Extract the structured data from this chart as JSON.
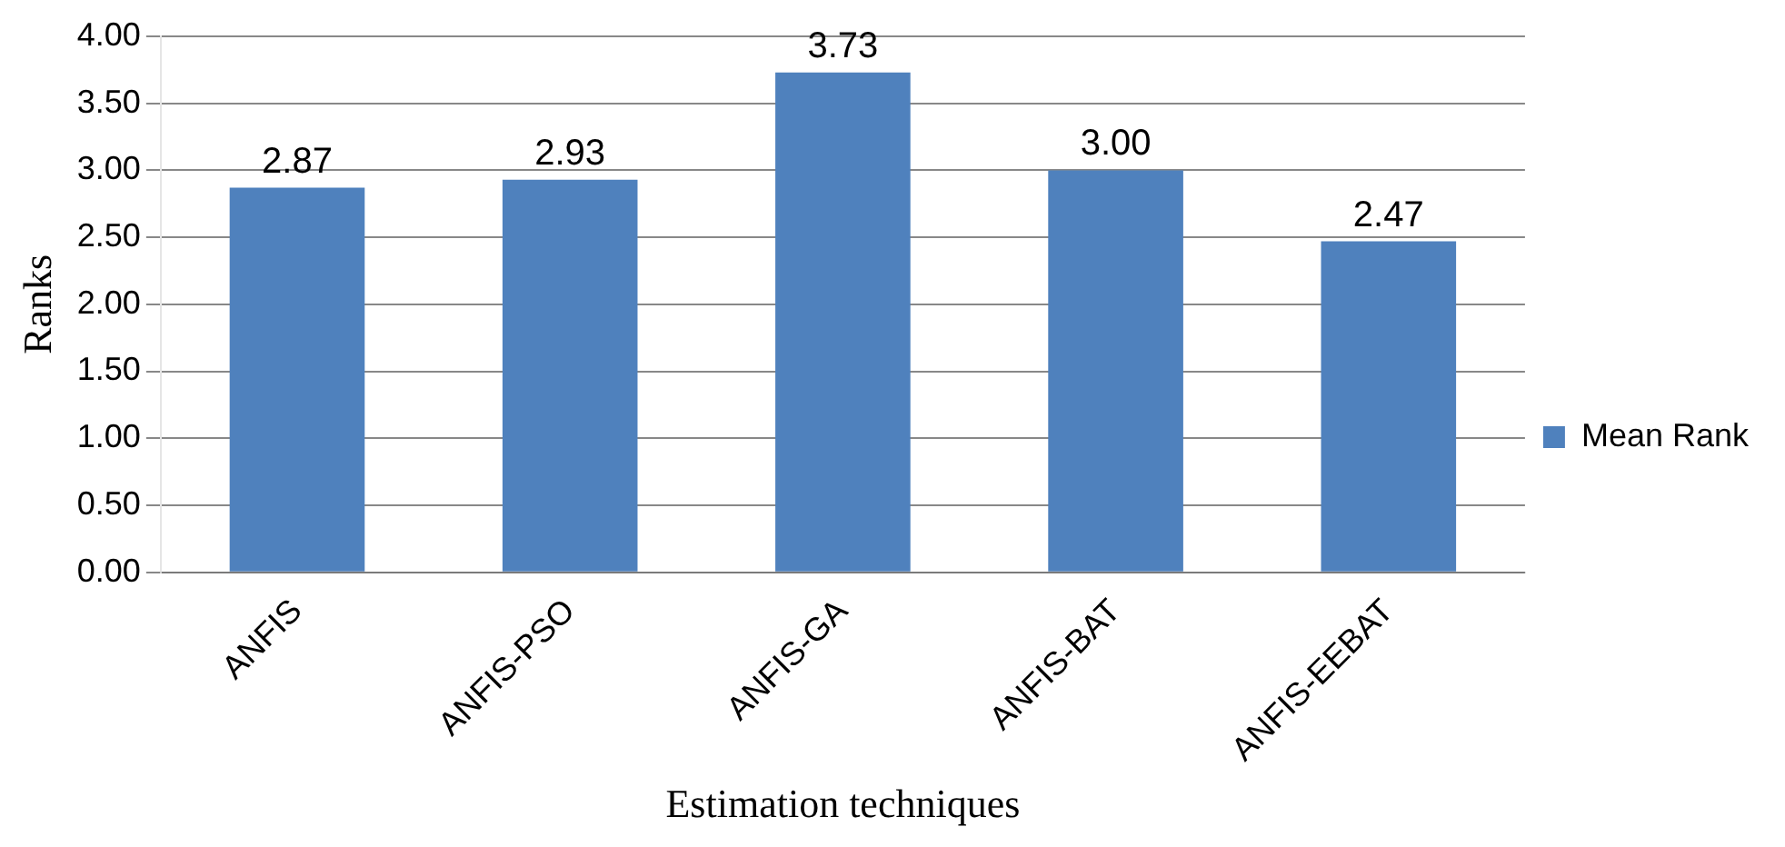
{
  "chart_data": {
    "type": "bar",
    "xlabel": "Estimation techniques",
    "ylabel": "Ranks",
    "categories": [
      "ANFIS",
      "ANFIS-PSO",
      "ANFIS-GA",
      "ANFIS-BAT",
      "ANFIS-EEBAT"
    ],
    "series": [
      {
        "name": "Mean Rank",
        "color": "#4f81bd",
        "values": [
          2.87,
          2.93,
          3.73,
          3.0,
          2.47
        ]
      }
    ],
    "ylim": [
      0,
      4
    ],
    "yticks": [
      {
        "value": 0,
        "label": "0.00"
      },
      {
        "value": 0.5,
        "label": "0.50"
      },
      {
        "value": 1,
        "label": "1.00"
      },
      {
        "value": 1.5,
        "label": "1.50"
      },
      {
        "value": 2,
        "label": "2.00"
      },
      {
        "value": 2.5,
        "label": "2.50"
      },
      {
        "value": 3,
        "label": "3.00"
      },
      {
        "value": 3.5,
        "label": "3.50"
      },
      {
        "value": 4,
        "label": "4.00"
      }
    ],
    "value_labels": [
      "2.87",
      "2.93",
      "3.73",
      "3.00",
      "2.47"
    ],
    "grid": "y",
    "legend": "right"
  }
}
